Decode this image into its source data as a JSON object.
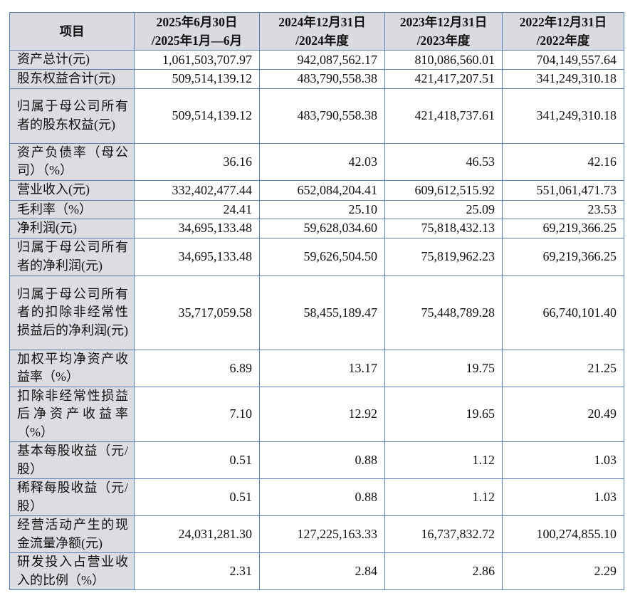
{
  "table": {
    "headers": [
      {
        "line1": "项目",
        "line2": ""
      },
      {
        "line1": "2025年6月30日",
        "line2": "/2025年1月—6月"
      },
      {
        "line1": "2024年12月31日",
        "line2": "/2024年度"
      },
      {
        "line1": "2023年12月31日",
        "line2": "/2023年度"
      },
      {
        "line1": "2022年12月31日",
        "line2": "/2022年度"
      }
    ],
    "rows": [
      {
        "label": "资产总计(元)",
        "values": [
          "1,061,503,707.97",
          "942,087,562.17",
          "810,086,560.01",
          "704,149,557.64"
        ]
      },
      {
        "label": "股东权益合计(元)",
        "values": [
          "509,514,139.12",
          "483,790,558.38",
          "421,417,207.51",
          "341,249,310.18"
        ]
      },
      {
        "label": "归属于母公司所有者的股东权益(元)",
        "values": [
          "509,514,139.12",
          "483,790,558.38",
          "421,418,737.61",
          "341,249,310.18"
        ]
      },
      {
        "label": "资产负债率（母公司）（%）",
        "values": [
          "36.16",
          "42.03",
          "46.53",
          "42.16"
        ]
      },
      {
        "label": "营业收入(元)",
        "values": [
          "332,402,477.44",
          "652,084,204.41",
          "609,612,515.92",
          "551,061,471.73"
        ]
      },
      {
        "label": "毛利率（%）",
        "values": [
          "24.41",
          "25.10",
          "25.09",
          "23.53"
        ]
      },
      {
        "label": "净利润(元)",
        "values": [
          "34,695,133.48",
          "59,628,034.60",
          "75,818,432.13",
          "69,219,366.25"
        ]
      },
      {
        "label": "归属于母公司所有者的净利润(元)",
        "values": [
          "34,695,133.48",
          "59,626,504.50",
          "75,819,962.23",
          "69,219,366.25"
        ]
      },
      {
        "label": "归属于母公司所有者的扣除非经常性损益后的净利润(元)",
        "values": [
          "35,717,059.58",
          "58,455,189.47",
          "75,448,789.28",
          "66,740,101.40"
        ]
      },
      {
        "label": "加权平均净资产收益率（%）",
        "values": [
          "6.89",
          "13.17",
          "19.75",
          "21.25"
        ]
      },
      {
        "label": "扣除非经常性损益后净资产收益率（%）",
        "values": [
          "7.10",
          "12.92",
          "19.65",
          "20.49"
        ]
      },
      {
        "label": "基本每股收益（元/股）",
        "values": [
          "0.51",
          "0.88",
          "1.12",
          "1.03"
        ]
      },
      {
        "label": "稀释每股收益（元/股）",
        "values": [
          "0.51",
          "0.88",
          "1.12",
          "1.03"
        ]
      },
      {
        "label": "经营活动产生的现金流量净额(元)",
        "values": [
          "24,031,281.30",
          "127,225,163.33",
          "16,737,832.72",
          "100,274,855.10"
        ]
      },
      {
        "label": "研发投入占营业收入的比例（%）",
        "values": [
          "2.31",
          "2.84",
          "2.86",
          "2.29"
        ]
      }
    ]
  }
}
